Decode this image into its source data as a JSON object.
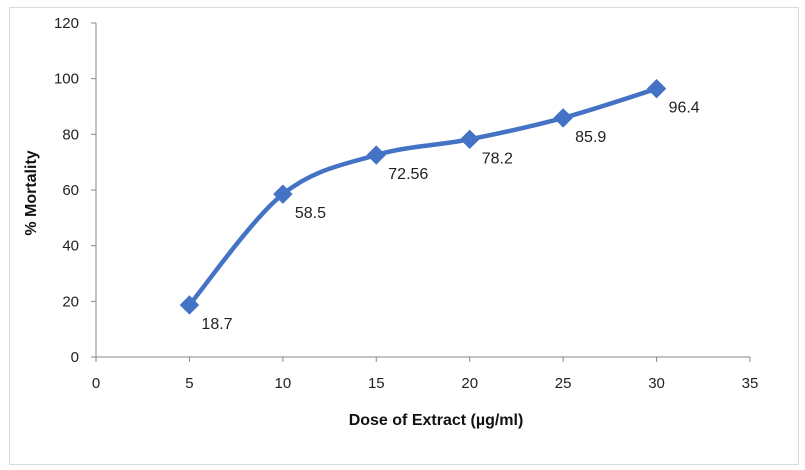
{
  "chart_data": {
    "type": "line",
    "title": "",
    "xlabel": "Dose of Extract (µg/ml)",
    "ylabel": "% Mortality",
    "xlim": [
      0,
      35
    ],
    "ylim": [
      0,
      120
    ],
    "x_ticks": [
      "0",
      "5",
      "10",
      "15",
      "20",
      "25",
      "30",
      "35"
    ],
    "y_ticks": [
      "0",
      "20",
      "40",
      "60",
      "80",
      "100",
      "120"
    ],
    "grid": false,
    "legend": "none",
    "series": [
      {
        "x": [
          5,
          10,
          15,
          20,
          25,
          30
        ],
        "values": [
          18.7,
          58.5,
          72.56,
          78.2,
          85.9,
          96.4
        ],
        "labels": [
          "18.7",
          "58.5",
          "72.56",
          "78.2",
          "85.9",
          "96.4"
        ],
        "color": "#4472c4",
        "marker": "diamond",
        "smooth": true
      }
    ]
  }
}
